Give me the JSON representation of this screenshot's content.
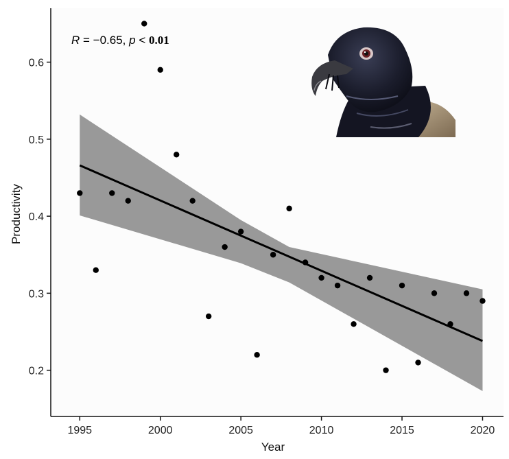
{
  "chart_data": {
    "type": "scatter",
    "xlabel": "Year",
    "ylabel": "Productivity",
    "xlim": [
      1993.2,
      2021.3
    ],
    "ylim": [
      0.14,
      0.67
    ],
    "x_ticks": [
      1995,
      2000,
      2005,
      2010,
      2015,
      2020
    ],
    "y_ticks": [
      0.2,
      0.3,
      0.4,
      0.5,
      0.6
    ],
    "y_tick_labels": [
      "0.2",
      "0.3",
      "0.4",
      "0.5",
      "0.6"
    ],
    "points": {
      "x": [
        1995,
        1996,
        1997,
        1998,
        1999,
        2000,
        2001,
        2002,
        2003,
        2004,
        2005,
        2006,
        2007,
        2008,
        2009,
        2010,
        2011,
        2012,
        2013,
        2014,
        2015,
        2016,
        2017,
        2018,
        2019,
        2020
      ],
      "y": [
        0.43,
        0.33,
        0.43,
        0.42,
        0.65,
        0.59,
        0.48,
        0.42,
        0.27,
        0.36,
        0.38,
        0.22,
        0.35,
        0.41,
        0.34,
        0.32,
        0.31,
        0.26,
        0.32,
        0.2,
        0.31,
        0.21,
        0.3,
        0.26,
        0.3,
        0.29
      ]
    },
    "fit": {
      "x": [
        1995,
        2020
      ],
      "y": [
        0.466,
        0.238
      ]
    },
    "confidence_band": {
      "x": [
        1995,
        2005,
        2008,
        2020
      ],
      "upper": [
        0.532,
        0.395,
        0.36,
        0.305
      ],
      "lower": [
        0.401,
        0.339,
        0.314,
        0.173
      ]
    },
    "annotation": {
      "r_symbol": "R",
      "r_text": " = −0.65, ",
      "p_symbol": "p",
      "p_op": " < ",
      "p_value": "0.01"
    },
    "grid": false,
    "colors": {
      "points": "#000000",
      "fit_line": "#000000",
      "band": "#999999"
    }
  },
  "inset_image": {
    "icon": "bearded-vulture-head"
  }
}
